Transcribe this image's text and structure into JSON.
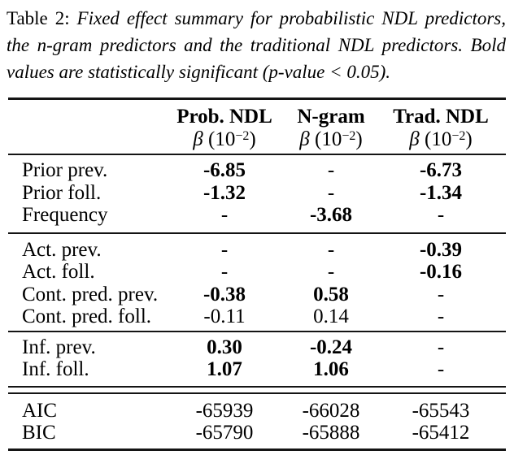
{
  "page": {
    "background": "#ffffff",
    "text_color": "#000000",
    "rule_color": "#141414"
  },
  "caption": {
    "label": "Table 2:",
    "lines": [
      "Fixed effect summary for probabilistic NDL predictors,",
      "the n-gram predictors and the traditional NDL predictors. Bold",
      "values are statistically significant (p-value < 0.05)."
    ]
  },
  "table": {
    "column_headers": [
      "Prob. NDL",
      "N-gram",
      "Trad. NDL"
    ],
    "unit": {
      "beta": "β",
      "prefix": " (10",
      "exponent": "−2",
      "suffix": ")"
    },
    "sections": [
      {
        "rows": [
          {
            "label": "Prior prev.",
            "cells": [
              {
                "v": "-6.85",
                "bold": true
              },
              {
                "v": "-",
                "bold": false
              },
              {
                "v": "-6.73",
                "bold": true
              }
            ]
          },
          {
            "label": "Prior foll.",
            "cells": [
              {
                "v": "-1.32",
                "bold": true
              },
              {
                "v": "-",
                "bold": false
              },
              {
                "v": "-1.34",
                "bold": true
              }
            ]
          },
          {
            "label": "Frequency",
            "cells": [
              {
                "v": "-",
                "bold": false
              },
              {
                "v": "-3.68",
                "bold": true
              },
              {
                "v": "-",
                "bold": false
              }
            ]
          }
        ]
      },
      {
        "rows": [
          {
            "label": "Act. prev.",
            "cells": [
              {
                "v": "-",
                "bold": false
              },
              {
                "v": "-",
                "bold": false
              },
              {
                "v": "-0.39",
                "bold": true
              }
            ]
          },
          {
            "label": "Act. foll.",
            "cells": [
              {
                "v": "-",
                "bold": false
              },
              {
                "v": "-",
                "bold": false
              },
              {
                "v": "-0.16",
                "bold": true
              }
            ]
          },
          {
            "label": "Cont. pred. prev.",
            "cells": [
              {
                "v": "-0.38",
                "bold": true
              },
              {
                "v": "0.58",
                "bold": true
              },
              {
                "v": "-",
                "bold": false
              }
            ]
          },
          {
            "label": "Cont. pred. foll.",
            "cells": [
              {
                "v": "-0.11",
                "bold": false
              },
              {
                "v": "0.14",
                "bold": false
              },
              {
                "v": "-",
                "bold": false
              }
            ]
          }
        ]
      },
      {
        "rows": [
          {
            "label": "Inf. prev.",
            "cells": [
              {
                "v": "0.30",
                "bold": true
              },
              {
                "v": "-0.24",
                "bold": true
              },
              {
                "v": "-",
                "bold": false
              }
            ]
          },
          {
            "label": "Inf. foll.",
            "cells": [
              {
                "v": "1.07",
                "bold": true
              },
              {
                "v": "1.06",
                "bold": true
              },
              {
                "v": "-",
                "bold": false
              }
            ]
          }
        ]
      },
      {
        "rows": [
          {
            "label": "AIC",
            "cells": [
              {
                "v": "-65939",
                "bold": false
              },
              {
                "v": "-66028",
                "bold": false
              },
              {
                "v": "-65543",
                "bold": false
              }
            ]
          },
          {
            "label": "BIC",
            "cells": [
              {
                "v": "-65790",
                "bold": false
              },
              {
                "v": "-65888",
                "bold": false
              },
              {
                "v": "-65412",
                "bold": false
              }
            ]
          }
        ]
      }
    ]
  }
}
